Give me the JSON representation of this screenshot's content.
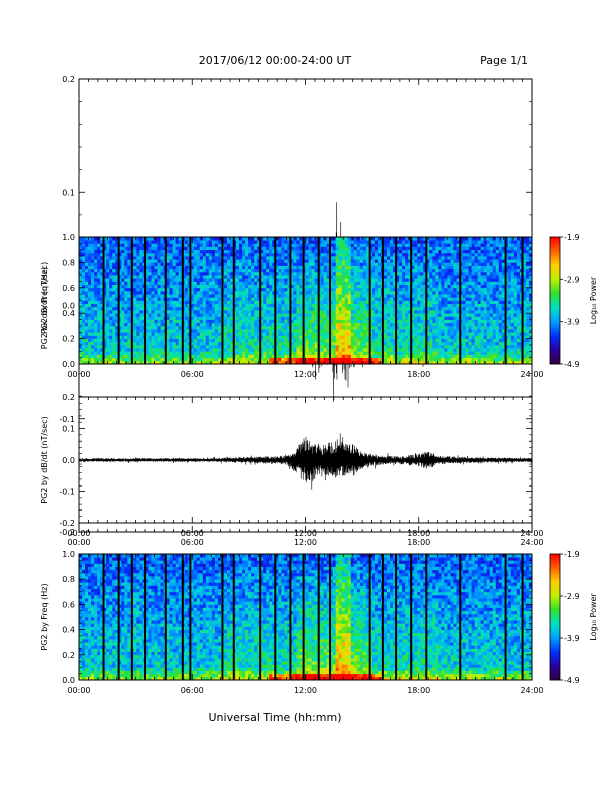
{
  "header": {
    "title": "2017/06/12  00:00-24:00 UT",
    "page": "Page 1/1"
  },
  "footer": {
    "xlabel": "Universal Time (hh:mm)"
  },
  "colorbar": {
    "title": "Log₁₀ Power",
    "ticks": [
      "-1.9",
      "-2.9",
      "-3.9",
      "-4.9"
    ],
    "stops": [
      "#300040",
      "#2a00a0",
      "#0030ff",
      "#00a0ff",
      "#00e0c0",
      "#30e030",
      "#c0f000",
      "#ffd000",
      "#ff6000",
      "#ff0000"
    ]
  },
  "x_ticks": [
    "00:00",
    "06:00",
    "12:00",
    "18:00",
    "24:00"
  ],
  "chart_data": [
    {
      "type": "line",
      "title": "",
      "ylabel": "PG2 bx dB/dt (nT/sec)",
      "xlabel": "",
      "xlim": [
        0,
        24
      ],
      "ylim": [
        -0.2,
        0.2
      ],
      "y_ticks": [
        "0.2",
        "0.1",
        "0.0",
        "-0.1",
        "-0.2"
      ],
      "grid": false,
      "series": [
        {
          "x": [
            0,
            2,
            4,
            6,
            7,
            8,
            8.5,
            9,
            10,
            11,
            11.5,
            12,
            12.5,
            13,
            13.5,
            14,
            14.5,
            15,
            15.5,
            16,
            17,
            18,
            18.5,
            19,
            20,
            22,
            24
          ],
          "amplitude": [
            0.006,
            0.006,
            0.006,
            0.006,
            0.006,
            0.012,
            0.025,
            0.015,
            0.015,
            0.02,
            0.03,
            0.05,
            0.06,
            0.06,
            0.065,
            0.07,
            0.06,
            0.04,
            0.03,
            0.02,
            0.015,
            0.03,
            0.04,
            0.02,
            0.01,
            0.008,
            0.006
          ]
        }
      ]
    },
    {
      "type": "heatmap",
      "title": "",
      "ylabel": "PG2 bx Freq (Hz)",
      "xlabel": "",
      "xlim": [
        0,
        24
      ],
      "ylim": [
        0,
        1.0
      ],
      "y_ticks": [
        "1.0",
        "0.8",
        "0.6",
        "0.4",
        "0.2",
        "0.0"
      ],
      "zlim": [
        -4.9,
        -1.9
      ],
      "data_gaps_hours": [
        1.3,
        2.1,
        2.8,
        3.5,
        4.6,
        5.5,
        5.9,
        7.6,
        8.2,
        9.6,
        10.4,
        11.2,
        11.9,
        12.7,
        13.3,
        15.4,
        16.1,
        16.8,
        17.6,
        18.4,
        20.2,
        22.6,
        23.5
      ],
      "bright_band_hours": [
        13.6,
        14.4
      ]
    },
    {
      "type": "line",
      "title": "",
      "ylabel": "PG2 by dB/dt (nT/sec)",
      "xlabel": "",
      "xlim": [
        0,
        24
      ],
      "ylim": [
        -0.2,
        0.2
      ],
      "y_ticks": [
        "0.2",
        "0.1",
        "0.0",
        "-0.1",
        "-0.2"
      ],
      "grid": false,
      "series": [
        {
          "x": [
            0,
            2,
            4,
            6,
            7,
            8,
            9,
            10,
            11,
            11.5,
            12,
            12.5,
            13,
            13.5,
            14,
            14.5,
            15,
            15.5,
            16,
            17,
            18,
            18.5,
            19,
            20,
            22,
            24
          ],
          "amplitude": [
            0.006,
            0.006,
            0.006,
            0.006,
            0.006,
            0.008,
            0.01,
            0.012,
            0.015,
            0.04,
            0.08,
            0.06,
            0.05,
            0.06,
            0.06,
            0.05,
            0.03,
            0.02,
            0.015,
            0.012,
            0.02,
            0.03,
            0.015,
            0.01,
            0.008,
            0.006
          ]
        }
      ]
    },
    {
      "type": "heatmap",
      "title": "",
      "ylabel": "PG2 by Freq (Hz)",
      "xlabel": "",
      "xlim": [
        0,
        24
      ],
      "ylim": [
        0,
        1.0
      ],
      "y_ticks": [
        "1.0",
        "0.8",
        "0.6",
        "0.4",
        "0.2",
        "0.0"
      ],
      "zlim": [
        -4.9,
        -1.9
      ],
      "data_gaps_hours": [
        1.3,
        2.1,
        2.8,
        3.5,
        4.6,
        5.5,
        5.9,
        7.6,
        8.2,
        9.6,
        10.4,
        11.2,
        11.9,
        12.7,
        13.3,
        15.4,
        16.1,
        16.8,
        17.6,
        18.4,
        20.2,
        22.6,
        23.5
      ],
      "bright_band_hours": [
        13.6,
        14.4
      ]
    }
  ]
}
